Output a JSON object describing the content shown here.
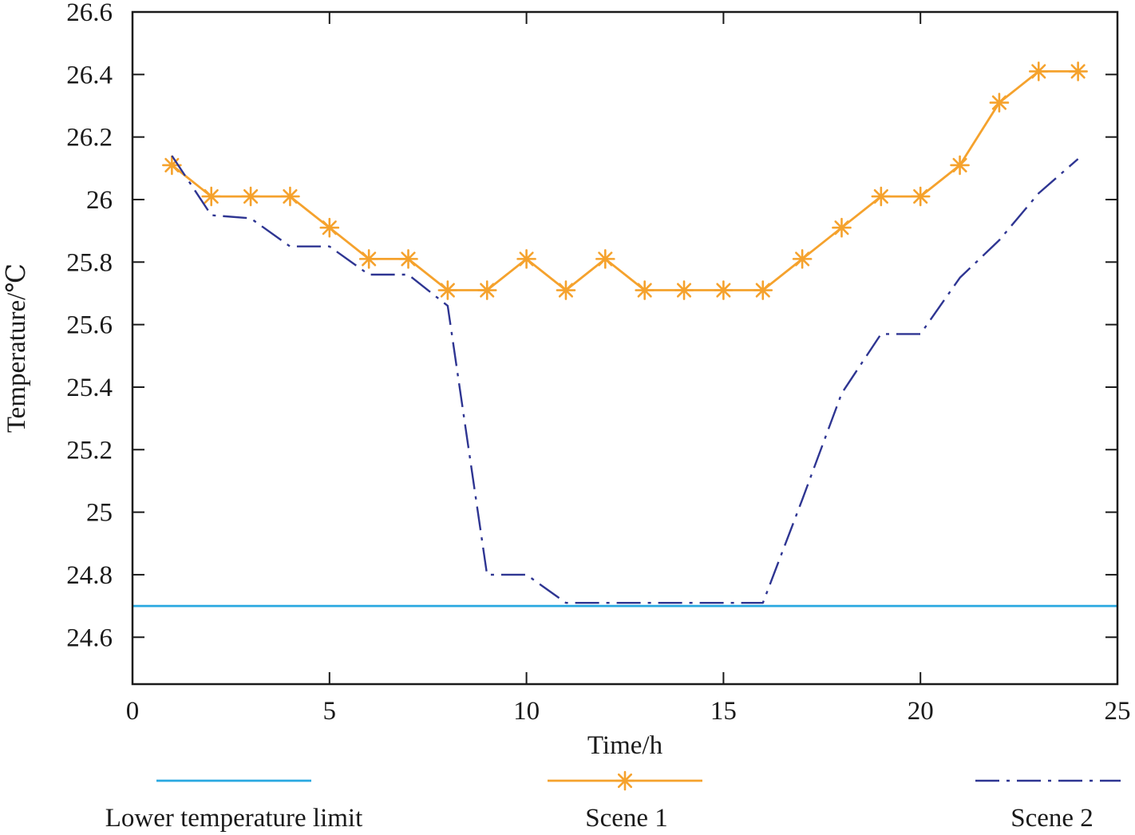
{
  "chart_data": {
    "type": "line",
    "xlabel": "Time/h",
    "ylabel": "Temperature/℃",
    "xlim": [
      0,
      25
    ],
    "ylim": [
      24.45,
      26.6
    ],
    "xticks": [
      0,
      5,
      10,
      15,
      20,
      25
    ],
    "xtick_labels": [
      "0",
      "5",
      "10",
      "15",
      "20",
      "25"
    ],
    "yticks": [
      24.6,
      24.8,
      25,
      25.2,
      25.4,
      25.6,
      25.8,
      26,
      26.2,
      26.4,
      26.6
    ],
    "ytick_labels": [
      "24.6",
      "24.8",
      "25",
      "25.2",
      "25.4",
      "25.6",
      "25.8",
      "26",
      "26.2",
      "26.4",
      "26.6"
    ],
    "grid": false,
    "legend_position": "bottom",
    "series": [
      {
        "name": "Lower temperature limit",
        "color": "#29a8e0",
        "style": "solid",
        "marker": "none",
        "x": [
          0,
          25
        ],
        "y": [
          24.7,
          24.7
        ]
      },
      {
        "name": "Scene 1",
        "color": "#f5a22d",
        "style": "solid",
        "marker": "asterisk",
        "x": [
          1,
          2,
          3,
          4,
          5,
          6,
          7,
          8,
          9,
          10,
          11,
          12,
          13,
          14,
          15,
          16,
          17,
          18,
          19,
          20,
          21,
          22,
          23,
          24
        ],
        "y": [
          26.11,
          26.01,
          26.01,
          26.01,
          25.91,
          25.81,
          25.81,
          25.71,
          25.71,
          25.81,
          25.71,
          25.81,
          25.71,
          25.71,
          25.71,
          25.71,
          25.81,
          25.91,
          26.01,
          26.01,
          26.11,
          26.31,
          26.41,
          26.41
        ]
      },
      {
        "name": "Scene 2",
        "color": "#2e3592",
        "style": "dashdot",
        "marker": "none",
        "x": [
          1,
          2,
          3,
          4,
          5,
          6,
          7,
          8,
          9,
          10,
          11,
          12,
          13,
          14,
          15,
          16,
          17,
          18,
          19,
          20,
          21,
          22,
          23,
          24
        ],
        "y": [
          26.14,
          25.95,
          25.94,
          25.85,
          25.85,
          25.76,
          25.76,
          25.66,
          24.8,
          24.8,
          24.71,
          24.71,
          24.71,
          24.71,
          24.71,
          24.71,
          25.04,
          25.38,
          25.57,
          25.57,
          25.75,
          25.87,
          26.02,
          26.13
        ]
      }
    ]
  }
}
